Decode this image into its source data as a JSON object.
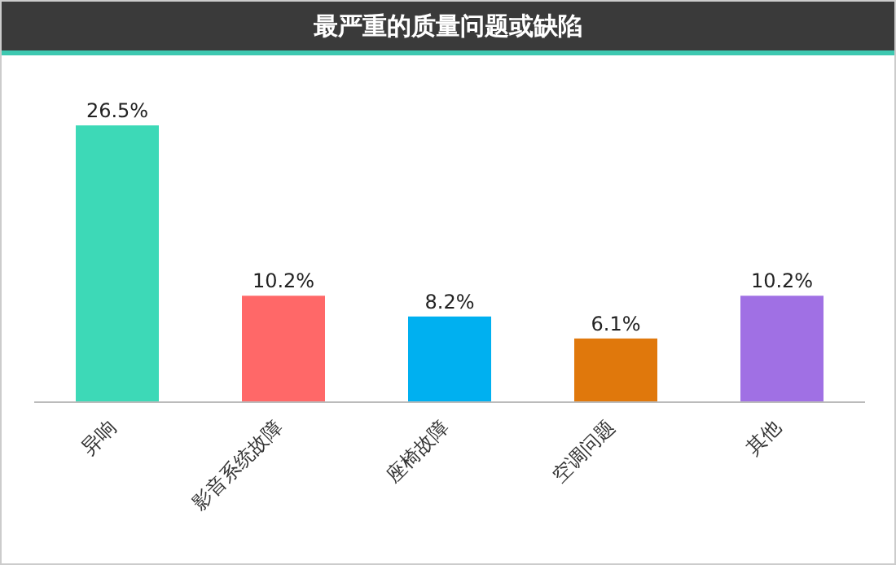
{
  "chart_data": {
    "type": "bar",
    "title": "最严重的质量问题或缺陷",
    "categories": [
      "异响",
      "影音系统故障",
      "座椅故障",
      "空调问题",
      "其他"
    ],
    "values": [
      26.5,
      10.2,
      8.2,
      6.1,
      10.2
    ],
    "value_labels": [
      "26.5%",
      "10.2%",
      "8.2%",
      "6.1%",
      "10.2%"
    ],
    "colors": [
      "#3dd9b7",
      "#ff6868",
      "#00b0f0",
      "#e0780c",
      "#a070e4"
    ],
    "grid": false
  }
}
